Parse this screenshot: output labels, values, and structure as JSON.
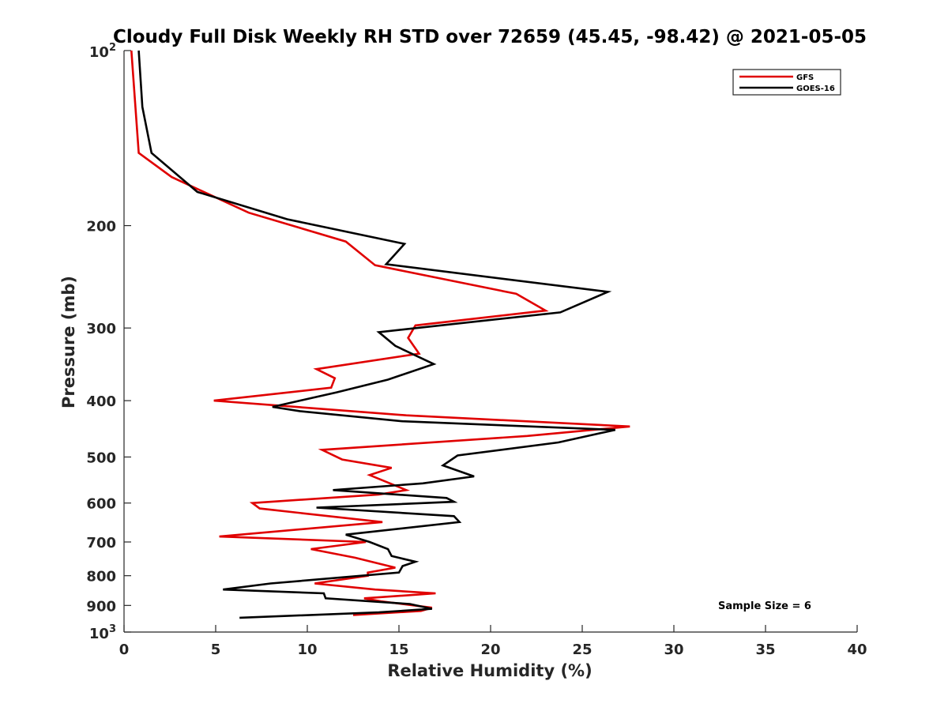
{
  "chart_data": {
    "type": "line",
    "title": "Cloudy Full Disk Weekly RH STD over 72659 (45.45, -98.42) @ 2021-05-05",
    "xlabel": "Relative Humidity (%)",
    "ylabel": "Pressure (mb)",
    "xlim": [
      0,
      40
    ],
    "ylim": [
      100,
      1000
    ],
    "y_scale": "log",
    "y_reversed": true,
    "x_ticks": [
      "0",
      "5",
      "10",
      "15",
      "20",
      "25",
      "30",
      "35",
      "40"
    ],
    "y_ticks": [
      {
        "value": 100,
        "base": "10",
        "exp": "2"
      },
      {
        "value": 200,
        "label": "200"
      },
      {
        "value": 300,
        "label": "300"
      },
      {
        "value": 400,
        "label": "400"
      },
      {
        "value": 500,
        "label": "500"
      },
      {
        "value": 600,
        "label": "600"
      },
      {
        "value": 700,
        "label": "700"
      },
      {
        "value": 800,
        "label": "800"
      },
      {
        "value": 900,
        "label": "900"
      },
      {
        "value": 1000,
        "base": "10",
        "exp": "3"
      }
    ],
    "grid": false,
    "legend_position": "top-right",
    "annotation": "Sample Size = 6",
    "series": [
      {
        "name": "GFS",
        "color": "#e00000",
        "points": [
          [
            0.4,
            100
          ],
          [
            0.8,
            150
          ],
          [
            2.6,
            165
          ],
          [
            6.8,
            190
          ],
          [
            12.1,
            213
          ],
          [
            13.7,
            234
          ],
          [
            21.4,
            262
          ],
          [
            23.0,
            280
          ],
          [
            15.9,
            297
          ],
          [
            15.5,
            312
          ],
          [
            16.1,
            332
          ],
          [
            10.5,
            353
          ],
          [
            11.5,
            366
          ],
          [
            11.3,
            380
          ],
          [
            4.9,
            400
          ],
          [
            15.4,
            424
          ],
          [
            27.6,
            443
          ],
          [
            22.0,
            460
          ],
          [
            10.8,
            486
          ],
          [
            11.9,
            505
          ],
          [
            14.6,
            522
          ],
          [
            13.4,
            537
          ],
          [
            15.4,
            570
          ],
          [
            13.9,
            580
          ],
          [
            7.0,
            600
          ],
          [
            7.4,
            613
          ],
          [
            14.1,
            647
          ],
          [
            5.2,
            685
          ],
          [
            13.2,
            700
          ],
          [
            10.2,
            720
          ],
          [
            12.6,
            745
          ],
          [
            14.8,
            775
          ],
          [
            13.3,
            790
          ],
          [
            13.3,
            800
          ],
          [
            10.4,
            825
          ],
          [
            13.7,
            845
          ],
          [
            17.0,
            858
          ],
          [
            13.1,
            875
          ],
          [
            14.0,
            885
          ],
          [
            16.8,
            908
          ],
          [
            16.2,
            920
          ],
          [
            12.5,
            935
          ]
        ]
      },
      {
        "name": "GOES-16",
        "color": "#000000",
        "points": [
          [
            0.8,
            100
          ],
          [
            1.0,
            125
          ],
          [
            1.5,
            150
          ],
          [
            4.0,
            175
          ],
          [
            8.9,
            195
          ],
          [
            15.3,
            215
          ],
          [
            14.3,
            233
          ],
          [
            26.4,
            260
          ],
          [
            23.8,
            282
          ],
          [
            13.9,
            305
          ],
          [
            14.8,
            322
          ],
          [
            16.9,
            346
          ],
          [
            14.4,
            368
          ],
          [
            11.6,
            387
          ],
          [
            8.1,
            410
          ],
          [
            9.6,
            417
          ],
          [
            15.2,
            434
          ],
          [
            26.8,
            449
          ],
          [
            23.7,
            472
          ],
          [
            18.2,
            497
          ],
          [
            17.4,
            517
          ],
          [
            19.1,
            540
          ],
          [
            16.3,
            555
          ],
          [
            11.4,
            570
          ],
          [
            17.6,
            588
          ],
          [
            18.0,
            597
          ],
          [
            10.5,
            611
          ],
          [
            18.0,
            632
          ],
          [
            18.3,
            647
          ],
          [
            12.1,
            680
          ],
          [
            13.4,
            700
          ],
          [
            14.4,
            720
          ],
          [
            14.6,
            740
          ],
          [
            15.9,
            757
          ],
          [
            15.2,
            770
          ],
          [
            15.0,
            790
          ],
          [
            8.0,
            825
          ],
          [
            5.4,
            845
          ],
          [
            10.9,
            858
          ],
          [
            11.0,
            875
          ],
          [
            15.6,
            895
          ],
          [
            16.8,
            912
          ],
          [
            13.9,
            925
          ],
          [
            6.3,
            945
          ]
        ]
      }
    ]
  }
}
